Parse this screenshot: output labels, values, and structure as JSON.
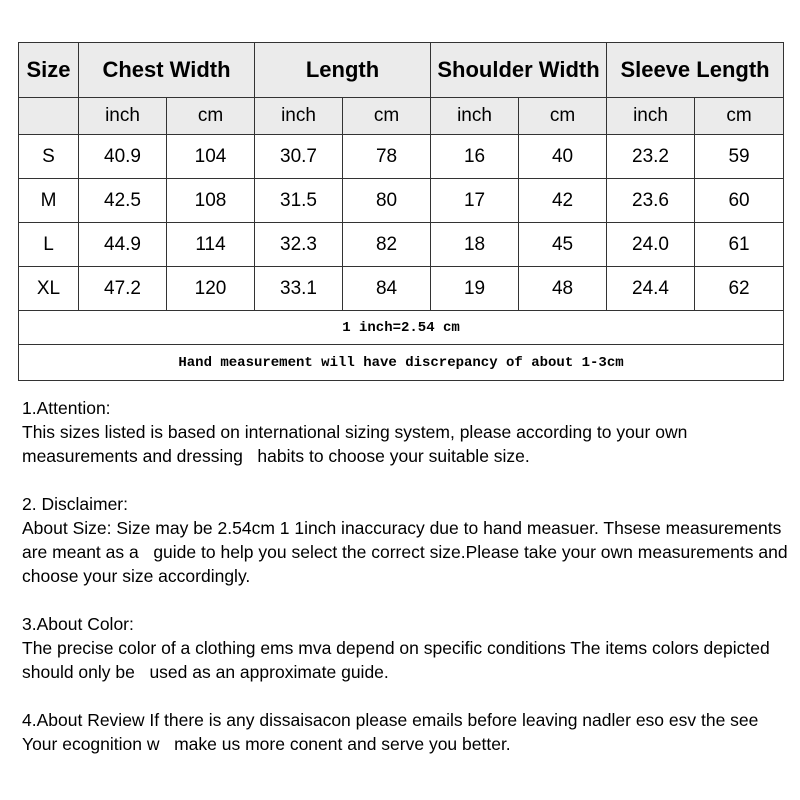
{
  "headers": [
    "Size",
    "Chest Width",
    "Length",
    "Shoulder Width",
    "Sleeve Length"
  ],
  "units": [
    "inch",
    "cm",
    "inch",
    "cm",
    "inch",
    "cm",
    "inch",
    "cm"
  ],
  "rows": [
    [
      "S",
      "40.9",
      "104",
      "30.7",
      "78",
      "16",
      "40",
      "23.2",
      "59"
    ],
    [
      "M",
      "42.5",
      "108",
      "31.5",
      "80",
      "17",
      "42",
      "23.6",
      "60"
    ],
    [
      "L",
      "44.9",
      "114",
      "32.3",
      "82",
      "18",
      "45",
      "24.0",
      "61"
    ],
    [
      "XL",
      "47.2",
      "120",
      "33.1",
      "84",
      "19",
      "48",
      "24.4",
      "62"
    ]
  ],
  "notes": [
    "1 inch=2.54 cm",
    "Hand measurement will have discrepancy of about 1-3cm"
  ],
  "sections": [
    {
      "title": "1.Attention:",
      "body": "This sizes listed is based on international sizing system, please according to your own measurements and dressing   habits to choose your suitable size."
    },
    {
      "title": "2. Disclaimer:",
      "body": "About Size: Size may be 2.54cm 1 1inch inaccuracy due to hand measuer. Thsese measurements are meant as a   guide to help you select the correct size.Please take your own measurements and choose your size accordingly."
    },
    {
      "title": "3.About Color:",
      "body": "The precise color of a clothing ems mva depend on specific conditions The items colors depicted should only be   used as an approximate guide."
    },
    {
      "title": "",
      "body": "4.About Review If there is any dissaisacon please emails before leaving nadler eso esv the see Your ecognition w   make us more conent and serve you better."
    }
  ]
}
